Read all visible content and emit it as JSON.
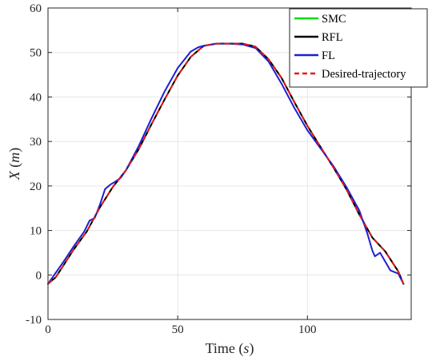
{
  "chart_data": {
    "type": "line",
    "xlabel": "Time (s)",
    "ylabel": "X (m)",
    "xlim": [
      0,
      140
    ],
    "ylim": [
      -10,
      60
    ],
    "xticks": [
      0,
      50,
      100
    ],
    "yticks": [
      -10,
      0,
      10,
      20,
      30,
      40,
      50,
      60
    ],
    "grid": true,
    "legend_position": "top-right",
    "series": [
      {
        "name": "SMC",
        "color": "#00e000",
        "style": "solid",
        "x": [
          0,
          3,
          6,
          10,
          15,
          20,
          25,
          30,
          35,
          40,
          45,
          50,
          55,
          60,
          65,
          70,
          75,
          80,
          85,
          90,
          95,
          100,
          105,
          110,
          115,
          120,
          125,
          130,
          135,
          137
        ],
        "y": [
          -2,
          -0.5,
          2.2,
          5.8,
          9.8,
          15.2,
          19.8,
          23.5,
          28.3,
          34,
          39.5,
          44.8,
          49,
          51.5,
          52,
          52,
          52,
          51.3,
          48.5,
          44.3,
          38.8,
          33.5,
          28.8,
          24.2,
          19.3,
          13.6,
          8.4,
          5.3,
          0.8,
          -2
        ]
      },
      {
        "name": "RFL",
        "color": "#000000",
        "style": "solid",
        "x": [
          0,
          3,
          6,
          10,
          15,
          20,
          25,
          30,
          35,
          40,
          45,
          50,
          55,
          60,
          65,
          70,
          75,
          80,
          85,
          90,
          95,
          100,
          105,
          110,
          115,
          120,
          125,
          130,
          135,
          137
        ],
        "y": [
          -2,
          -0.5,
          2.2,
          5.8,
          9.8,
          15.2,
          19.8,
          23.5,
          28.3,
          34,
          39.5,
          44.8,
          49,
          51.5,
          52,
          52,
          52,
          51.3,
          48.5,
          44.3,
          38.8,
          33.5,
          28.8,
          24.2,
          19.3,
          13.6,
          8.4,
          5.3,
          0.8,
          -2
        ]
      },
      {
        "name": "FL",
        "color": "#1f1fd0",
        "style": "solid",
        "x": [
          0,
          3,
          6,
          10,
          14,
          16,
          18,
          20,
          22,
          24,
          26,
          28,
          30,
          35,
          40,
          45,
          50,
          55,
          58,
          60,
          65,
          70,
          75,
          80,
          85,
          90,
          95,
          100,
          105,
          110,
          115,
          120,
          123,
          125,
          126,
          128,
          130,
          132,
          135,
          137
        ],
        "y": [
          -2,
          0.5,
          3,
          6.5,
          9.8,
          12.2,
          12.8,
          15.8,
          19.3,
          20.3,
          21,
          21.8,
          23.5,
          29,
          35.3,
          41.3,
          46.5,
          50.2,
          51.2,
          51.5,
          52,
          52,
          51.8,
          51,
          48,
          43,
          37.5,
          32.5,
          28.5,
          24.5,
          19.8,
          14.5,
          9.5,
          5.5,
          4.2,
          5,
          3,
          1,
          0.3,
          -2
        ]
      },
      {
        "name": "Desired-trajectory",
        "color": "#e8161c",
        "style": "dashed",
        "x": [
          0,
          3,
          6,
          10,
          15,
          20,
          25,
          30,
          35,
          40,
          45,
          50,
          55,
          60,
          65,
          70,
          75,
          80,
          85,
          90,
          95,
          100,
          105,
          110,
          115,
          120,
          125,
          130,
          135,
          137
        ],
        "y": [
          -2,
          -0.5,
          2.2,
          5.8,
          9.8,
          15.2,
          19.8,
          23.5,
          28.3,
          34,
          39.5,
          44.8,
          49,
          51.5,
          52,
          52,
          52,
          51.3,
          48.5,
          44.3,
          38.8,
          33.5,
          28.8,
          24.2,
          19.3,
          13.6,
          8.4,
          5.3,
          0.8,
          -2
        ]
      }
    ]
  }
}
